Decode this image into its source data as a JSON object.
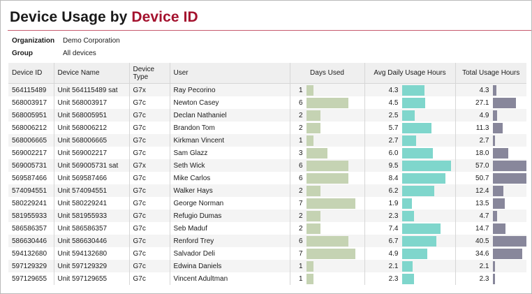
{
  "report": {
    "title_prefix": "Device Usage by ",
    "title_accent": "Device ID",
    "accent_color": "#a4122e"
  },
  "filters": {
    "organization_label": "Organization",
    "organization_value": "Demo Corporation",
    "group_label": "Group",
    "group_value": "All devices"
  },
  "table": {
    "columns": [
      "Device ID",
      "Device Name",
      "Device Type",
      "User",
      "Days Used",
      "Avg Daily Usage Hours",
      "Total Usage Hours"
    ],
    "days_max": 7,
    "avg_max": 9.5,
    "total_max": 57.0,
    "rows": [
      {
        "device_id": "564115489",
        "device_name": "Unit 564115489 sat",
        "device_type": "G7x",
        "user": "Ray Pecorino",
        "days_used": 1,
        "avg_daily": "4.3",
        "total": "4.3"
      },
      {
        "device_id": "568003917",
        "device_name": "Unit 568003917",
        "device_type": "G7c",
        "user": "Newton Casey",
        "days_used": 6,
        "avg_daily": "4.5",
        "total": "27.1"
      },
      {
        "device_id": "568005951",
        "device_name": "Unit 568005951",
        "device_type": "G7c",
        "user": "Declan Nathaniel",
        "days_used": 2,
        "avg_daily": "2.5",
        "total": "4.9"
      },
      {
        "device_id": "568006212",
        "device_name": "Unit 568006212",
        "device_type": "G7c",
        "user": "Brandon Tom",
        "days_used": 2,
        "avg_daily": "5.7",
        "total": "11.3"
      },
      {
        "device_id": "568006665",
        "device_name": "Unit 568006665",
        "device_type": "G7c",
        "user": "Kirkman Vincent",
        "days_used": 1,
        "avg_daily": "2.7",
        "total": "2.7"
      },
      {
        "device_id": "569002217",
        "device_name": "Unit 569002217",
        "device_type": "G7c",
        "user": "Sam Glazz",
        "days_used": 3,
        "avg_daily": "6.0",
        "total": "18.0"
      },
      {
        "device_id": "569005731",
        "device_name": "Unit 569005731 sat",
        "device_type": "G7x",
        "user": "Seth Wick",
        "days_used": 6,
        "avg_daily": "9.5",
        "total": "57.0"
      },
      {
        "device_id": "569587466",
        "device_name": "Unit 569587466",
        "device_type": "G7c",
        "user": "Mike Carlos",
        "days_used": 6,
        "avg_daily": "8.4",
        "total": "50.7"
      },
      {
        "device_id": "574094551",
        "device_name": "Unit 574094551",
        "device_type": "G7c",
        "user": "Walker Hays",
        "days_used": 2,
        "avg_daily": "6.2",
        "total": "12.4"
      },
      {
        "device_id": "580229241",
        "device_name": "Unit 580229241",
        "device_type": "G7c",
        "user": "George Norman",
        "days_used": 7,
        "avg_daily": "1.9",
        "total": "13.5"
      },
      {
        "device_id": "581955933",
        "device_name": "Unit 581955933",
        "device_type": "G7c",
        "user": "Refugio Dumas",
        "days_used": 2,
        "avg_daily": "2.3",
        "total": "4.7"
      },
      {
        "device_id": "586586357",
        "device_name": "Unit 586586357",
        "device_type": "G7c",
        "user": "Seb Maduf",
        "days_used": 2,
        "avg_daily": "7.4",
        "total": "14.7"
      },
      {
        "device_id": "586630446",
        "device_name": "Unit 586630446",
        "device_type": "G7c",
        "user": "Renford Trey",
        "days_used": 6,
        "avg_daily": "6.7",
        "total": "40.5"
      },
      {
        "device_id": "594132680",
        "device_name": "Unit 594132680",
        "device_type": "G7c",
        "user": "Salvador Deli",
        "days_used": 7,
        "avg_daily": "4.9",
        "total": "34.6"
      },
      {
        "device_id": "597129329",
        "device_name": "Unit 597129329",
        "device_type": "G7c",
        "user": "Edwina Daniels",
        "days_used": 1,
        "avg_daily": "2.1",
        "total": "2.1"
      },
      {
        "device_id": "597129655",
        "device_name": "Unit 597129655",
        "device_type": "G7c",
        "user": "Vincent Adultman",
        "days_used": 1,
        "avg_daily": "2.3",
        "total": "2.3"
      }
    ]
  }
}
